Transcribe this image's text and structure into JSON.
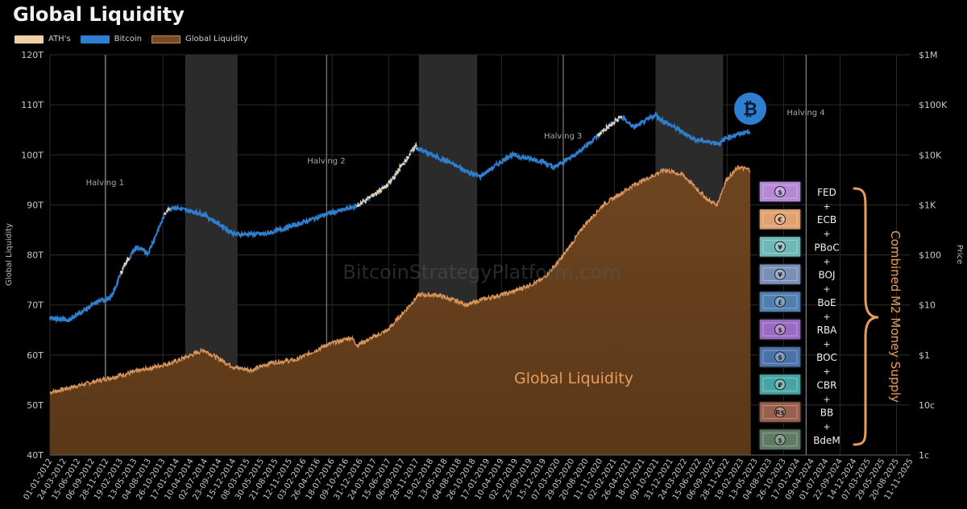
{
  "chart_data": {
    "type": "area",
    "title": "Global Liquidity",
    "legend": [
      {
        "name": "ATH's",
        "color": "#f0d0a8"
      },
      {
        "name": "Bitcoin",
        "color": "#2f7fd0"
      },
      {
        "name": "Global Liquidity",
        "color": "#7a4a22"
      }
    ],
    "ylabel_left": "Global Liquidity",
    "ylabel_right": "Price",
    "ylim_left": [
      40,
      120
    ],
    "yticks_left": [
      "40T",
      "50T",
      "60T",
      "70T",
      "80T",
      "90T",
      "100T",
      "110T",
      "120T"
    ],
    "yticks_right": [
      "1c",
      "10c",
      "$1",
      "$10",
      "$100",
      "$1K",
      "$10K",
      "$100K",
      "$1M"
    ],
    "x_range": [
      "2012-01-01",
      "2025-12-31"
    ],
    "xticks": [
      "01-01-2012",
      "24-03-2012",
      "15-06-2012",
      "06-09-2012",
      "28-11-2012",
      "19-02-2013",
      "13-05-2013",
      "04-08-2013",
      "26-10-2013",
      "17-01-2014",
      "10-04-2014",
      "02-07-2014",
      "23-09-2014",
      "15-12-2014",
      "08-03-2015",
      "30-05-2015",
      "21-08-2015",
      "12-11-2015",
      "03-02-2016",
      "26-04-2016",
      "18-07-2016",
      "09-10-2016",
      "31-12-2016",
      "24-03-2017",
      "15-06-2017",
      "06-09-2017",
      "28-11-2017",
      "19-02-2018",
      "13-05-2018",
      "04-08-2018",
      "26-10-2018",
      "17-01-2019",
      "10-04-2019",
      "02-07-2019",
      "23-09-2019",
      "15-12-2019",
      "07-03-2020",
      "29-05-2020",
      "20-08-2020",
      "11-11-2020",
      "02-02-2021",
      "26-04-2021",
      "18-07-2021",
      "09-10-2021",
      "31-12-2021",
      "24-03-2022",
      "15-06-2022",
      "06-09-2022",
      "28-11-2022",
      "19-02-2023",
      "13-05-2023",
      "04-08-2023",
      "26-10-2023",
      "17-01-2024",
      "09-04-2024",
      "01-07-2024",
      "22-09-2024",
      "14-12-2024",
      "07-03-2025",
      "29-05-2025",
      "20-08-2025",
      "11-11-2025"
    ],
    "global_liquidity_T": [
      [
        2012.0,
        52.5
      ],
      [
        2012.5,
        54
      ],
      [
        2013.0,
        55.5
      ],
      [
        2013.5,
        57
      ],
      [
        2014.0,
        58.5
      ],
      [
        2014.5,
        61
      ],
      [
        2015.0,
        57.5
      ],
      [
        2015.3,
        57
      ],
      [
        2015.6,
        58.5
      ],
      [
        2016.0,
        59
      ],
      [
        2016.5,
        62
      ],
      [
        2016.9,
        63.5
      ],
      [
        2017.0,
        62
      ],
      [
        2017.5,
        65
      ],
      [
        2018.0,
        72
      ],
      [
        2018.3,
        72
      ],
      [
        2018.8,
        70
      ],
      [
        2019.0,
        71
      ],
      [
        2019.5,
        72.5
      ],
      [
        2020.0,
        75
      ],
      [
        2020.3,
        79
      ],
      [
        2020.7,
        86
      ],
      [
        2021.0,
        90
      ],
      [
        2021.5,
        94
      ],
      [
        2022.0,
        97
      ],
      [
        2022.3,
        96
      ],
      [
        2022.7,
        91
      ],
      [
        2022.85,
        90
      ],
      [
        2023.0,
        95
      ],
      [
        2023.2,
        97.5
      ],
      [
        2023.4,
        97
      ]
    ],
    "bitcoin_usd": [
      [
        2012.0,
        5.5
      ],
      [
        2012.3,
        5
      ],
      [
        2012.8,
        12
      ],
      [
        2013.0,
        14
      ],
      [
        2013.2,
        60
      ],
      [
        2013.4,
        140
      ],
      [
        2013.6,
        110
      ],
      [
        2013.9,
        800
      ],
      [
        2014.0,
        900
      ],
      [
        2014.5,
        650
      ],
      [
        2015.0,
        260
      ],
      [
        2015.5,
        260
      ],
      [
        2016.0,
        400
      ],
      [
        2016.5,
        650
      ],
      [
        2017.0,
        950
      ],
      [
        2017.5,
        2500
      ],
      [
        2017.95,
        15000
      ],
      [
        2018.0,
        13000
      ],
      [
        2018.5,
        7000
      ],
      [
        2018.9,
        4000
      ],
      [
        2019.0,
        3700
      ],
      [
        2019.5,
        10000
      ],
      [
        2020.0,
        7500
      ],
      [
        2020.2,
        5500
      ],
      [
        2020.6,
        11500
      ],
      [
        2021.0,
        30000
      ],
      [
        2021.3,
        58000
      ],
      [
        2021.5,
        35000
      ],
      [
        2021.85,
        62000
      ],
      [
        2022.0,
        46000
      ],
      [
        2022.5,
        20000
      ],
      [
        2022.9,
        16800
      ],
      [
        2023.0,
        22000
      ],
      [
        2023.3,
        28000
      ],
      [
        2023.4,
        30000
      ]
    ],
    "ath_segments": [
      [
        2013.15,
        2013.3
      ],
      [
        2013.85,
        2013.95
      ],
      [
        2017.0,
        2017.97
      ],
      [
        2020.9,
        2021.3
      ]
    ],
    "halvings": [
      {
        "label": "Halving 1",
        "date": 2012.9
      },
      {
        "label": "Halving 2",
        "date": 2016.5
      },
      {
        "label": "Halving 3",
        "date": 2020.35
      },
      {
        "label": "Halving 4",
        "date": 2024.3
      }
    ],
    "shaded_periods": [
      [
        2014.2,
        2015.05
      ],
      [
        2018.0,
        2018.95
      ],
      [
        2021.85,
        2022.95
      ]
    ],
    "area_label": "Global Liquidity",
    "watermark": "BitcoinStrategyPlatform.com",
    "central_banks": [
      {
        "name": "FED",
        "symbol": "$",
        "color": "#b488d6"
      },
      {
        "name": "ECB",
        "symbol": "€",
        "color": "#e0a070"
      },
      {
        "name": "PBoC",
        "symbol": "¥",
        "color": "#6fb8b8"
      },
      {
        "name": "BOJ",
        "symbol": "¥",
        "color": "#7a8fb8"
      },
      {
        "name": "BoE",
        "symbol": "£",
        "color": "#4f7fb0"
      },
      {
        "name": "RBA",
        "symbol": "$",
        "color": "#9a6ac2"
      },
      {
        "name": "BOC",
        "symbol": "$",
        "color": "#4a72a8"
      },
      {
        "name": "CBR",
        "symbol": "₽",
        "color": "#48a4a4"
      },
      {
        "name": "BB",
        "symbol": "R$",
        "color": "#9a5e4c"
      },
      {
        "name": "BdeM",
        "symbol": "$",
        "color": "#5e7a64"
      }
    ],
    "plus_sign": "+",
    "brace_label": "Combined M2 Money Supply"
  }
}
